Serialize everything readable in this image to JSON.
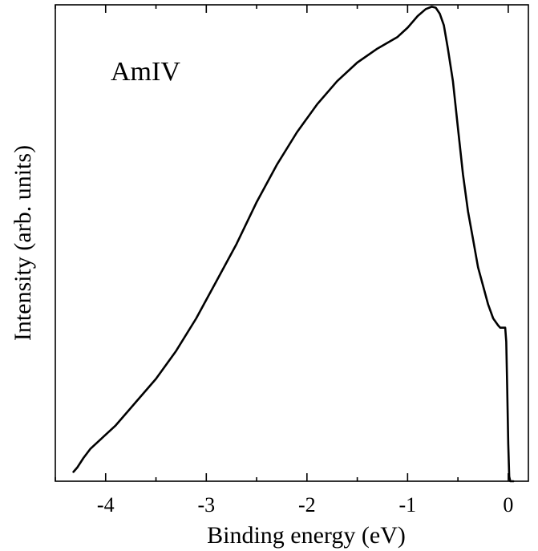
{
  "chart_data": {
    "type": "line",
    "title": "",
    "annotation": "AmIV",
    "xlabel": "Binding energy (eV)",
    "ylabel": "Intensity (arb. units)",
    "xlim": [
      -4.5,
      0.2
    ],
    "ylim": [
      0,
      1
    ],
    "xticks": [
      -4,
      -3,
      -2,
      -1,
      0
    ],
    "xtick_labels": [
      "-4",
      "-3",
      "-2",
      "-1",
      "0"
    ],
    "grid": false,
    "series": [
      {
        "x": [
          -4.32,
          -4.28,
          -4.22,
          -4.15,
          -4.05,
          -3.9,
          -3.7,
          -3.5,
          -3.3,
          -3.1,
          -2.9,
          -2.7,
          -2.5,
          -2.3,
          -2.1,
          -1.9,
          -1.7,
          -1.5,
          -1.3,
          -1.1,
          -1.0,
          -0.9,
          -0.82,
          -0.76,
          -0.72,
          -0.68,
          -0.64,
          -0.6,
          -0.55,
          -0.5,
          -0.45,
          -0.4,
          -0.35,
          -0.3,
          -0.25,
          -0.2,
          -0.15,
          -0.1,
          -0.08,
          -0.06,
          -0.04,
          -0.03,
          -0.02,
          -0.01,
          0.0,
          0.01,
          0.02,
          0.05
        ],
        "y": [
          0.02,
          0.03,
          0.05,
          0.07,
          0.09,
          0.12,
          0.17,
          0.22,
          0.28,
          0.35,
          0.43,
          0.51,
          0.6,
          0.68,
          0.75,
          0.81,
          0.86,
          0.9,
          0.93,
          0.955,
          0.975,
          1.0,
          1.015,
          1.02,
          1.018,
          1.005,
          0.98,
          0.93,
          0.86,
          0.76,
          0.66,
          0.58,
          0.52,
          0.46,
          0.42,
          0.38,
          0.35,
          0.335,
          0.33,
          0.33,
          0.33,
          0.33,
          0.3,
          0.2,
          0.08,
          0.01,
          0.0,
          0.0
        ]
      }
    ]
  }
}
